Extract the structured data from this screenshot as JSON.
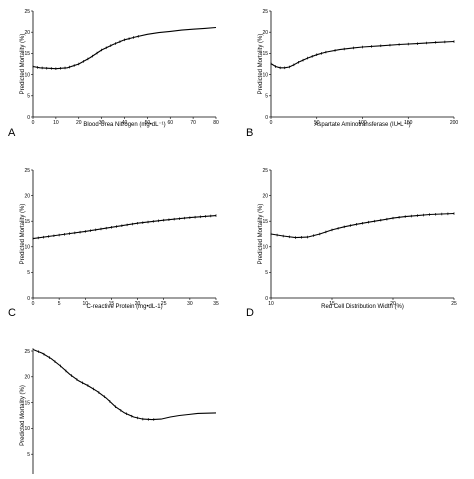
{
  "figure": {
    "type": "multi-panel line chart",
    "ylabel": "Predicted Mortality (%)"
  },
  "chart_data": [
    {
      "panel": "A",
      "type": "line",
      "xlabel": "Blood Urea Nitrogen (mg•dL⁻¹)",
      "ylabel": "Predicted Mortality (%)",
      "xlim": [
        0,
        80
      ],
      "ylim": [
        0,
        25
      ],
      "xticks": [
        0,
        10,
        20,
        30,
        40,
        50,
        60,
        70,
        80
      ],
      "yticks": [
        0,
        5,
        10,
        15,
        20,
        25
      ],
      "series": [
        {
          "x": [
            0,
            3,
            6,
            10,
            15,
            20,
            25,
            30,
            35,
            40,
            45,
            50,
            55,
            60,
            65,
            70,
            75,
            80
          ],
          "y": [
            11.9,
            11.6,
            11.5,
            11.4,
            11.6,
            12.5,
            14.0,
            15.8,
            17.1,
            18.2,
            18.9,
            19.5,
            19.9,
            20.2,
            20.5,
            20.7,
            20.9,
            21.1
          ]
        }
      ],
      "markers_x": [
        0,
        2,
        4,
        6,
        8,
        10,
        12,
        14,
        16,
        18,
        20,
        22,
        24,
        26,
        28,
        30,
        32,
        34,
        36,
        38,
        40,
        42,
        44,
        46
      ]
    },
    {
      "panel": "B",
      "type": "line",
      "xlabel": "Aspartate Aminotransferase (IU•L⁻¹)",
      "ylabel": "Predicted Mortality (%)",
      "xlim": [
        0,
        200
      ],
      "ylim": [
        0,
        25
      ],
      "xticks": [
        0,
        50,
        100,
        150,
        200
      ],
      "yticks": [
        0,
        5,
        10,
        15,
        20,
        25
      ],
      "series": [
        {
          "x": [
            0,
            5,
            10,
            15,
            20,
            25,
            30,
            40,
            50,
            60,
            75,
            90,
            100,
            120,
            140,
            160,
            180,
            200
          ],
          "y": [
            12.6,
            11.9,
            11.6,
            11.6,
            11.8,
            12.3,
            12.9,
            13.9,
            14.7,
            15.3,
            15.9,
            16.3,
            16.5,
            16.8,
            17.1,
            17.3,
            17.6,
            17.8
          ]
        }
      ],
      "markers_x": [
        0,
        5,
        10,
        15,
        20,
        25,
        30,
        35,
        40,
        45,
        50,
        55,
        60,
        70,
        80,
        90,
        100,
        110,
        120,
        130,
        140,
        150,
        160,
        170,
        180,
        190,
        200
      ]
    },
    {
      "panel": "C",
      "type": "line",
      "xlabel": "C-reactive Protein (mg•dL-1)",
      "ylabel": "Predicted Mortality (%)",
      "xlim": [
        0,
        35
      ],
      "ylim": [
        0,
        25
      ],
      "xticks": [
        0,
        5,
        10,
        15,
        20,
        25,
        30,
        35
      ],
      "yticks": [
        0,
        5,
        10,
        15,
        20,
        25
      ],
      "series": [
        {
          "x": [
            0,
            5,
            10,
            15,
            20,
            25,
            30,
            35
          ],
          "y": [
            11.6,
            12.3,
            13.0,
            13.8,
            14.6,
            15.2,
            15.7,
            16.1
          ]
        }
      ],
      "markers_x": [
        0,
        1,
        2,
        3,
        4,
        5,
        6,
        7,
        8,
        9,
        10,
        11,
        12,
        13,
        14,
        15,
        16,
        17,
        18,
        19,
        20,
        21,
        22,
        23,
        24,
        25,
        26,
        27,
        28,
        29,
        30,
        31,
        32,
        33,
        34,
        35
      ]
    },
    {
      "panel": "D",
      "type": "line",
      "xlabel": "Red Cell Distribution Width (%)",
      "ylabel": "Predicted Mortality (%)",
      "xlim": [
        10,
        25
      ],
      "ylim": [
        0,
        25
      ],
      "xticks": [
        10,
        15,
        20,
        25
      ],
      "yticks": [
        0,
        5,
        10,
        15,
        20,
        25
      ],
      "series": [
        {
          "x": [
            10,
            11,
            12,
            13,
            14,
            15,
            16,
            17,
            18,
            19,
            20,
            21,
            22,
            23,
            24,
            25
          ],
          "y": [
            12.5,
            12.1,
            11.8,
            11.9,
            12.5,
            13.3,
            13.9,
            14.4,
            14.8,
            15.2,
            15.6,
            15.9,
            16.1,
            16.3,
            16.4,
            16.5
          ]
        }
      ],
      "markers_x": [
        10,
        10.5,
        11,
        11.5,
        12,
        12.5,
        13,
        13.5,
        14,
        14.5,
        15,
        15.5,
        16,
        16.5,
        17,
        17.5,
        18,
        18.5,
        19,
        19.5,
        20,
        20.5,
        21,
        21.5,
        22,
        22.5,
        23,
        23.5,
        24,
        24.5,
        25
      ]
    },
    {
      "panel": "E",
      "type": "line",
      "xlabel": "",
      "ylabel": "Predicted Mortality (%)",
      "xlim": [
        0,
        1
      ],
      "ylim": [
        0,
        25
      ],
      "yticks": [
        0,
        5,
        10,
        15,
        20,
        25
      ],
      "series": [
        {
          "x": [
            0,
            0.05,
            0.1,
            0.15,
            0.2,
            0.25,
            0.3,
            0.35,
            0.4,
            0.45,
            0.5,
            0.55,
            0.6,
            0.65,
            0.7,
            0.75,
            0.8,
            0.85,
            0.9,
            1.0
          ],
          "y": [
            25.3,
            24.6,
            23.5,
            22.1,
            20.5,
            19.2,
            18.3,
            17.2,
            15.9,
            14.2,
            13.0,
            12.2,
            11.8,
            11.7,
            11.8,
            12.2,
            12.5,
            12.7,
            12.9,
            13.0
          ]
        }
      ],
      "markers_x": [
        0,
        0.03,
        0.06,
        0.09,
        0.12,
        0.15,
        0.18,
        0.21,
        0.24,
        0.27,
        0.3,
        0.33,
        0.36,
        0.39,
        0.42,
        0.45,
        0.48,
        0.51,
        0.54,
        0.57,
        0.6,
        0.63,
        0.66
      ]
    }
  ]
}
